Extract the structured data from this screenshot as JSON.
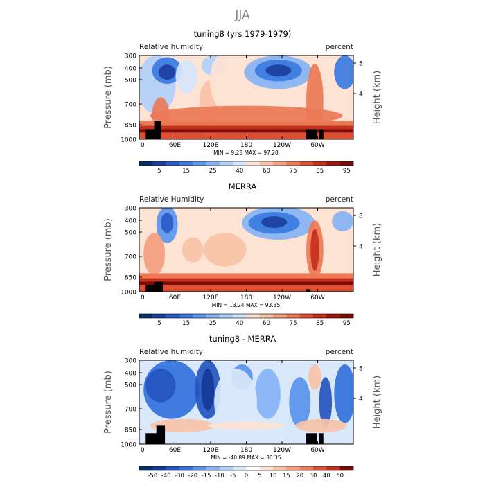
{
  "page_title": "JJA",
  "panels": [
    {
      "title": "tuning8 (yrs 1979-1979)",
      "left_label": "Relative humidity",
      "right_label": "percent",
      "min_max_text": "MIN =     9.28   MAX =    97.28",
      "colorbar_labels": [
        "5",
        "15",
        "25",
        "40",
        "60",
        "75",
        "85",
        "95"
      ],
      "colorbar_colors": [
        "#08306b",
        "#1c3f9e",
        "#2a5bc9",
        "#3b7ae0",
        "#5b97ee",
        "#86b3f4",
        "#b2cff8",
        "#d6e6fb",
        "#fde3d4",
        "#f9c3a8",
        "#f4a07e",
        "#ec7a57",
        "#dd5034",
        "#c5301a",
        "#a11810",
        "#7a0b08"
      ],
      "variant": "model"
    },
    {
      "title": "MERRA",
      "left_label": "Relative Humidity",
      "right_label": "percent",
      "min_max_text": "MIN =    13.24   MAX =    93.35",
      "colorbar_labels": [
        "5",
        "15",
        "25",
        "40",
        "60",
        "75",
        "85",
        "95"
      ],
      "colorbar_colors": [
        "#08306b",
        "#1c3f9e",
        "#2a5bc9",
        "#3b7ae0",
        "#5b97ee",
        "#86b3f4",
        "#b2cff8",
        "#d6e6fb",
        "#fde3d4",
        "#f9c3a8",
        "#f4a07e",
        "#ec7a57",
        "#dd5034",
        "#c5301a",
        "#a11810",
        "#7a0b08"
      ],
      "variant": "obs"
    },
    {
      "title": "tuning8 - MERRA",
      "left_label": "Relative humidity",
      "right_label": "percent",
      "min_max_text": "MIN =   -40.89   MAX =    30.35",
      "colorbar_labels": [
        "-50",
        "-40",
        "-30",
        "-20",
        "-15",
        "-10",
        "-5",
        "0",
        "5",
        "10",
        "15",
        "20",
        "30",
        "40",
        "50"
      ],
      "colorbar_colors": [
        "#08306b",
        "#143a97",
        "#2454c0",
        "#3471dd",
        "#5a92ec",
        "#86b3f4",
        "#b2cff8",
        "#d9e8fb",
        "#ffffff",
        "#fde3d4",
        "#f9c3a8",
        "#f4a07e",
        "#ec7a57",
        "#dd5034",
        "#c5301a",
        "#7a0b08"
      ],
      "variant": "diff"
    }
  ],
  "axes": {
    "ylabel": "Pressure (mb)",
    "y2label": "Height (km)",
    "pressure_ticks": [
      "300",
      "400",
      "500",
      "700",
      "850",
      "1000"
    ],
    "height_ticks": [
      "8",
      "4"
    ],
    "x_ticks": [
      "0",
      "60E",
      "120E",
      "180",
      "120W",
      "60W"
    ]
  },
  "chart_data": [
    {
      "type": "heatmap",
      "title": "tuning8 (yrs 1979-1979)",
      "subtitle": "Relative humidity",
      "units": "percent",
      "xlabel": "",
      "ylabel": "Pressure (mb)",
      "y2label": "Height (km)",
      "x_ticks": [
        "0",
        "60E",
        "120E",
        "180",
        "120W",
        "60W"
      ],
      "y_ticks": [
        300,
        400,
        500,
        700,
        850,
        1000
      ],
      "y2_ticks": [
        8,
        4
      ],
      "ylim": [
        1000,
        300
      ],
      "min": 9.28,
      "max": 97.28,
      "colorbar_levels": [
        5,
        15,
        25,
        40,
        60,
        75,
        85,
        95
      ]
    },
    {
      "type": "heatmap",
      "title": "MERRA",
      "subtitle": "Relative Humidity",
      "units": "percent",
      "xlabel": "",
      "ylabel": "Pressure (mb)",
      "y2label": "Height (km)",
      "x_ticks": [
        "0",
        "60E",
        "120E",
        "180",
        "120W",
        "60W"
      ],
      "y_ticks": [
        300,
        400,
        500,
        700,
        850,
        1000
      ],
      "y2_ticks": [
        8,
        4
      ],
      "ylim": [
        1000,
        300
      ],
      "min": 13.24,
      "max": 93.35,
      "colorbar_levels": [
        5,
        15,
        25,
        40,
        60,
        75,
        85,
        95
      ]
    },
    {
      "type": "heatmap",
      "title": "tuning8 - MERRA",
      "subtitle": "Relative humidity",
      "units": "percent",
      "xlabel": "",
      "ylabel": "Pressure (mb)",
      "y2label": "Height (km)",
      "x_ticks": [
        "0",
        "60E",
        "120E",
        "180",
        "120W",
        "60W"
      ],
      "y_ticks": [
        300,
        400,
        500,
        700,
        850,
        1000
      ],
      "y2_ticks": [
        8,
        4
      ],
      "ylim": [
        1000,
        300
      ],
      "min": -40.89,
      "max": 30.35,
      "colorbar_levels": [
        -50,
        -40,
        -30,
        -20,
        -15,
        -10,
        -5,
        0,
        5,
        10,
        15,
        20,
        30,
        40,
        50
      ]
    }
  ]
}
